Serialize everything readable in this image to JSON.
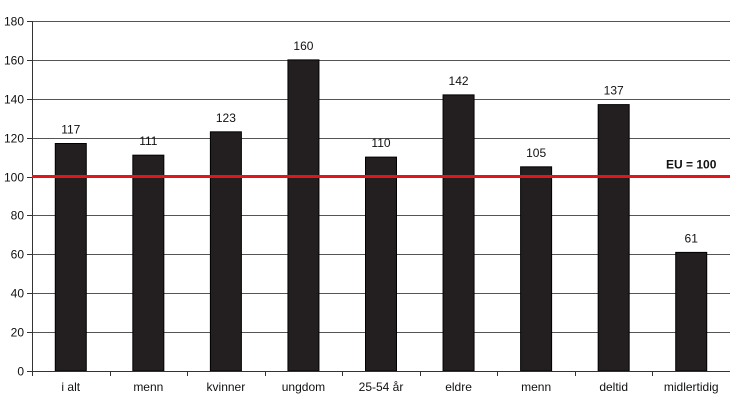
{
  "chart_data": {
    "type": "bar",
    "categories": [
      "i alt",
      "menn",
      "kvinner",
      "ungdom",
      "25-54 år",
      "eldre",
      "menn",
      "deltid",
      "midlertidig"
    ],
    "values": [
      117,
      111,
      123,
      160,
      110,
      142,
      105,
      137,
      61
    ],
    "data_labels": [
      "117",
      "111",
      "123",
      "160",
      "110",
      "142",
      "105",
      "137",
      "61"
    ],
    "ylim": [
      0,
      180
    ],
    "y_ticks": [
      0,
      20,
      40,
      60,
      80,
      100,
      120,
      140,
      160,
      180
    ],
    "grid": true,
    "reference_line": {
      "value": 100,
      "label": "EU = 100",
      "color": "#e0161b"
    },
    "bar_color": "#231f20",
    "title": "",
    "xlabel": "",
    "ylabel": ""
  }
}
